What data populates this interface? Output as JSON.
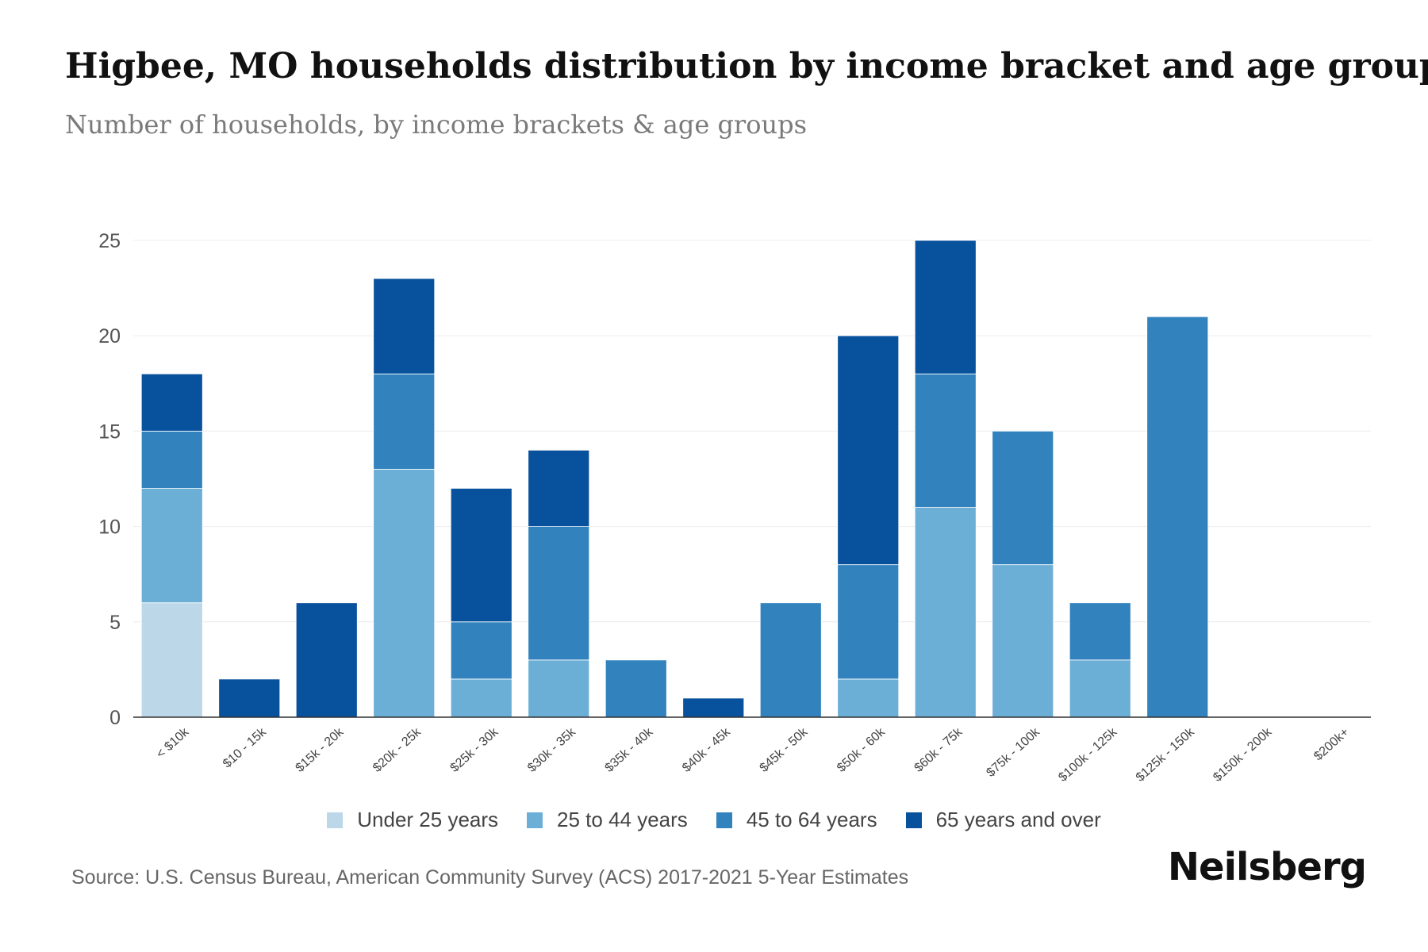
{
  "brand": "Neilsberg",
  "source": "Source: U.S. Census Bureau, American Community Survey (ACS) 2017-2021 5-Year Estimates",
  "chart_data": {
    "type": "bar",
    "stacked": true,
    "title": "Higbee, MO households distribution by income bracket and age group",
    "subtitle": "Number of households, by income brackets & age groups",
    "xlabel": "",
    "ylabel": "",
    "ylim": [
      0,
      25
    ],
    "yticks": [
      0,
      5,
      10,
      15,
      20,
      25
    ],
    "grid": true,
    "legend_position": "bottom",
    "categories": [
      "< $10k",
      "$10 - 15k",
      "$15k - 20k",
      "$20k - 25k",
      "$25k - 30k",
      "$30k - 35k",
      "$35k - 40k",
      "$40k - 45k",
      "$45k - 50k",
      "$50k - 60k",
      "$60k - 75k",
      "$75k - 100k",
      "$100k - 125k",
      "$125k - 150k",
      "$150k - 200k",
      "$200k+"
    ],
    "series": [
      {
        "name": "Under 25 years",
        "color": "#bcd7e8",
        "values": [
          6,
          0,
          0,
          0,
          0,
          0,
          0,
          0,
          0,
          0,
          0,
          0,
          0,
          0,
          0,
          0
        ]
      },
      {
        "name": "25 to 44 years",
        "color": "#6baed6",
        "values": [
          6,
          0,
          0,
          13,
          2,
          3,
          0,
          0,
          0,
          2,
          11,
          8,
          3,
          0,
          0,
          0
        ]
      },
      {
        "name": "45 to 64 years",
        "color": "#3182bd",
        "values": [
          3,
          0,
          0,
          5,
          3,
          7,
          3,
          0,
          6,
          6,
          7,
          7,
          3,
          21,
          0,
          0
        ]
      },
      {
        "name": "65 years and over",
        "color": "#08519c",
        "values": [
          3,
          2,
          6,
          5,
          7,
          4,
          0,
          1,
          0,
          12,
          7,
          0,
          0,
          0,
          0,
          0
        ]
      }
    ]
  }
}
